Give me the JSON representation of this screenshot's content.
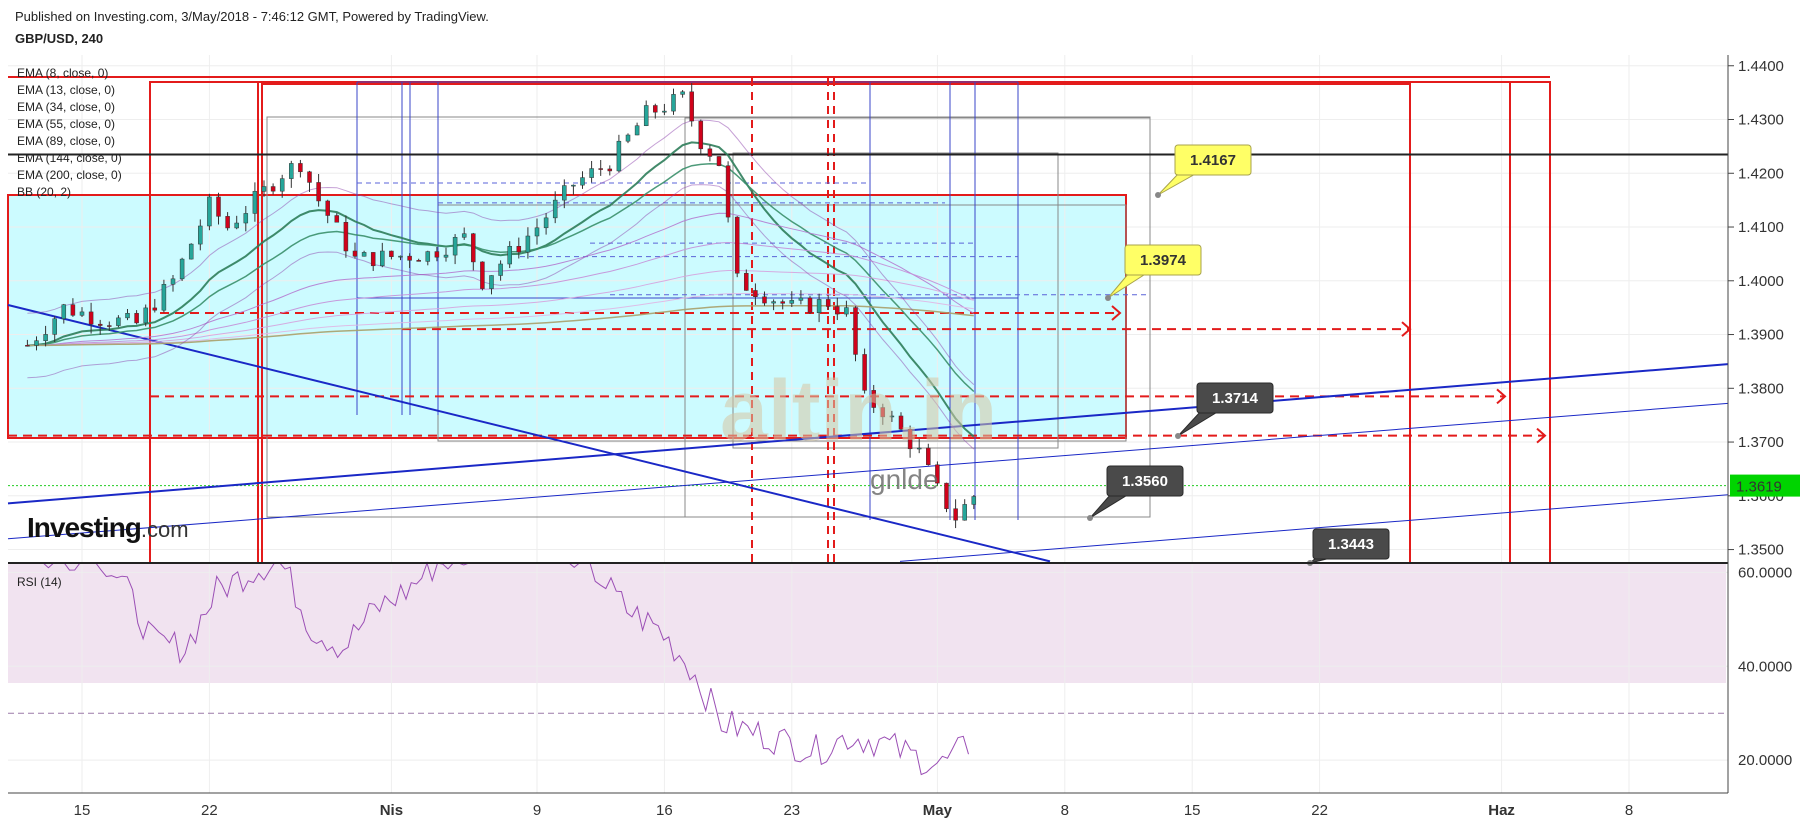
{
  "header": {
    "published": "Published on Investing.com, 3/May/2018 - 7:46:12 GMT, Powered by TradingView.",
    "symbol": "GBP/USD, 240"
  },
  "indicators": [
    "EMA (8, close, 0)",
    "EMA (13, close, 0)",
    "EMA (34, close, 0)",
    "EMA (55, close, 0)",
    "EMA (89, close, 0)",
    "EMA (144, close, 0)",
    "EMA (200, close, 0)",
    "BB (20, 2)"
  ],
  "rsi_label": "RSI (14)",
  "logo": {
    "brand": "Investing",
    "suffix": ".com"
  },
  "watermark": {
    "main": "altin.in",
    "sub": "gnlde"
  },
  "colors": {
    "up": "#26a69a",
    "down": "#d0021b",
    "cyan_zone": "#ccfbff",
    "rsi_bg": "#f1e3f0",
    "rsi_line": "#9b4fb5",
    "price_tag": "#00d400",
    "box_red": "#e31b1b",
    "trend_blue": "#1a28c6"
  },
  "chart_data": {
    "type": "candlestick",
    "symbol": "GBP/USD",
    "interval": "240",
    "x_ticks": [
      "15",
      "22",
      "Nis",
      "9",
      "16",
      "23",
      "May",
      "8",
      "15",
      "22",
      "Haz",
      "8"
    ],
    "y_ticks": [
      "1.4400",
      "1.4300",
      "1.4200",
      "1.4100",
      "1.4000",
      "1.3900",
      "1.3800",
      "1.3700",
      "1.3600",
      "1.3500"
    ],
    "ylim": [
      1.3475,
      1.442
    ],
    "current_price": "1.3619",
    "close_path": [
      [
        "Mar 12",
        1.388
      ],
      [
        "Mar 14",
        1.395
      ],
      [
        "Mar 16",
        1.393
      ],
      [
        "Mar 18",
        1.392
      ],
      [
        "Mar 20",
        1.4
      ],
      [
        "Mar 22",
        1.414
      ],
      [
        "Mar 23",
        1.41
      ],
      [
        "Mar 26",
        1.42
      ],
      [
        "Mar 27",
        1.422
      ],
      [
        "Mar 28",
        1.415
      ],
      [
        "Mar 30",
        1.404
      ],
      [
        "Apr 3",
        1.405
      ],
      [
        "Apr 5",
        1.408
      ],
      [
        "Apr 6",
        1.4
      ],
      [
        "Apr 9",
        1.41
      ],
      [
        "Apr 11",
        1.418
      ],
      [
        "Apr 13",
        1.422
      ],
      [
        "Apr 15",
        1.431
      ],
      [
        "Apr 17",
        1.434
      ],
      [
        "Apr 18",
        1.426
      ],
      [
        "Apr 19",
        1.422
      ],
      [
        "Apr 20",
        1.4
      ],
      [
        "Apr 23",
        1.395
      ],
      [
        "Apr 25",
        1.396
      ],
      [
        "Apr 26",
        1.394
      ],
      [
        "Apr 27",
        1.378
      ],
      [
        "Apr 28",
        1.376
      ],
      [
        "Apr 30",
        1.368
      ],
      [
        "May 1",
        1.361
      ],
      [
        "May 2",
        1.356
      ],
      [
        "May 3",
        1.36
      ]
    ],
    "rsi": {
      "ylim": [
        13,
        62
      ],
      "y_ticks": [
        "60.0000",
        "40.0000",
        "20.0000"
      ],
      "oversold": 30,
      "values": [
        65,
        62,
        66,
        58,
        45,
        44,
        56,
        60,
        63,
        48,
        44,
        52,
        56,
        62,
        64,
        70,
        72,
        66,
        60,
        52,
        48,
        40,
        28,
        26,
        24,
        22,
        25,
        24,
        21,
        19,
        24
      ]
    },
    "annotations": [
      {
        "label": "1.4167",
        "style": "yellow"
      },
      {
        "label": "1.3974",
        "style": "yellow"
      },
      {
        "label": "1.3714",
        "style": "dark"
      },
      {
        "label": "1.3560",
        "style": "dark"
      },
      {
        "label": "1.3443",
        "style": "dark"
      }
    ]
  }
}
